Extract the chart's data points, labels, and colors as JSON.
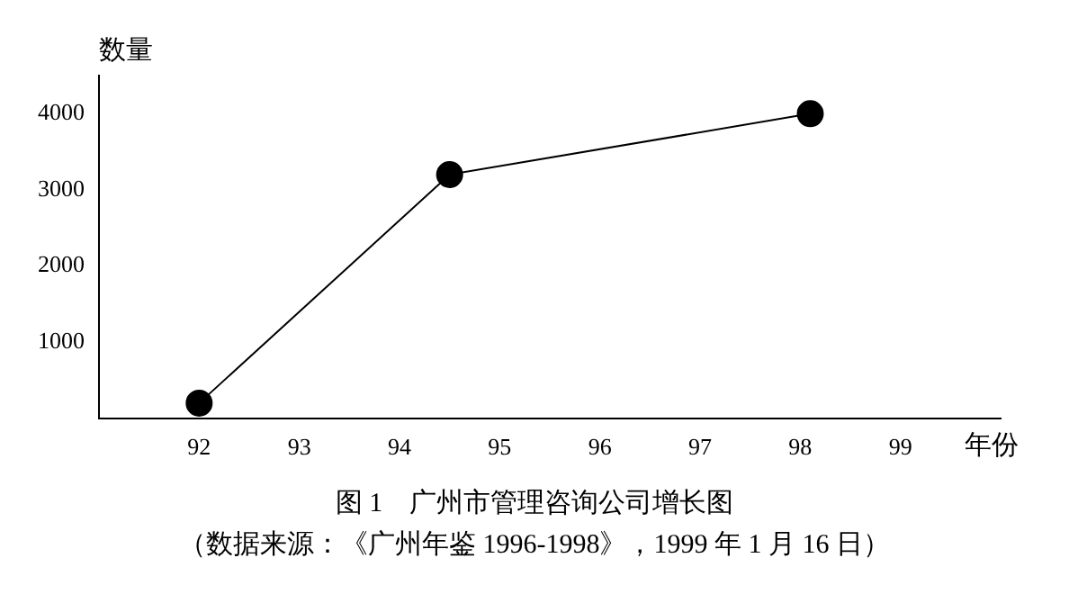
{
  "chart_data": {
    "type": "line",
    "title": "图 1　广州市管理咨询公司增长图",
    "xlabel": "年份",
    "ylabel": "数量",
    "annotations": [
      "（数据来源：《广州年鉴 1996-1998》，1999 年 1 月 16 日）"
    ],
    "series": [
      {
        "color": "#000000",
        "x": [
          92,
          94.5,
          98.1
        ],
        "values": [
          200,
          3200,
          4000
        ]
      }
    ],
    "xlim": [
      91,
      100
    ],
    "xticks": [
      92,
      93,
      94,
      95,
      96,
      97,
      98,
      99
    ],
    "ylim": [
      0,
      4500
    ],
    "yticks": [
      1000,
      2000,
      3000,
      4000
    ],
    "grid": false,
    "legend": false,
    "marker": "circle",
    "line_style": "solid"
  }
}
